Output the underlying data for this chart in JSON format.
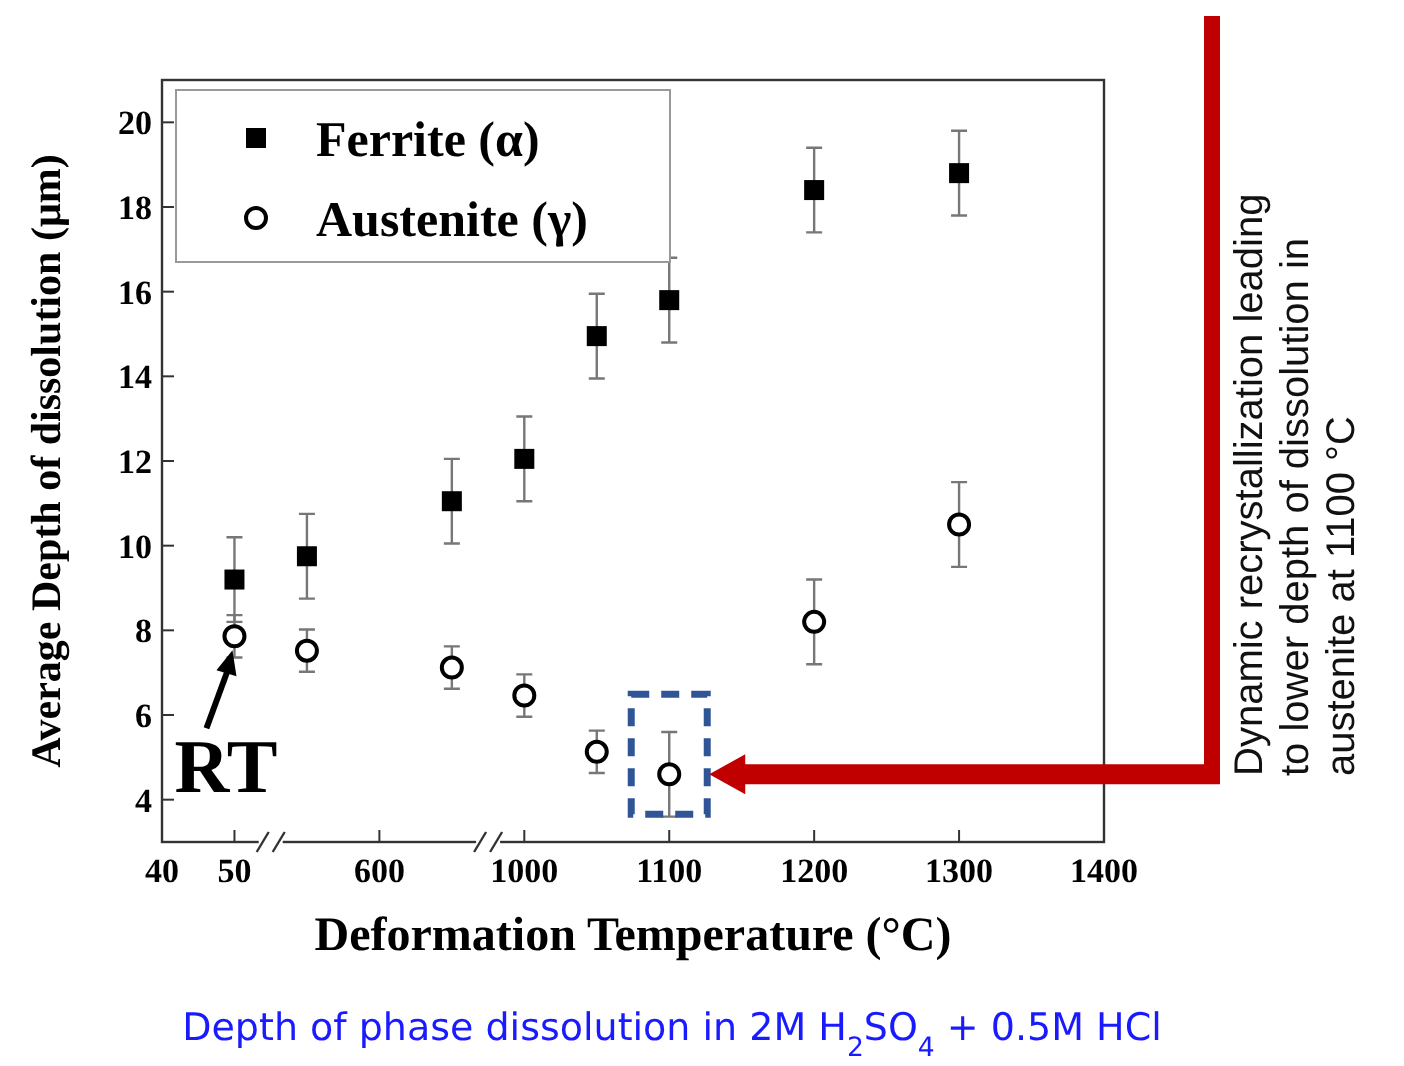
{
  "chart_data": {
    "type": "scatter",
    "xlabel": "Deformation Temperature (°C)",
    "ylabel": "Average Depth of dissolution (μm)",
    "categories": [
      "40",
      "50",
      null,
      "600",
      null,
      "1000",
      null,
      "1100",
      null,
      "1200",
      null,
      "1300",
      null,
      "1400"
    ],
    "ylim": [
      3,
      21
    ],
    "yticks": [
      4,
      6,
      8,
      10,
      12,
      14,
      16,
      18,
      20
    ],
    "grid": false,
    "legend": "top left",
    "series": [
      {
        "name": "Ferrite (α)",
        "color": "#000000",
        "marker": "square",
        "values": [
          null,
          9.2,
          9.75,
          null,
          11.05,
          12.05,
          14.95,
          15.8,
          null,
          18.4,
          null,
          18.8,
          null,
          null
        ],
        "errors": [
          null,
          1,
          1,
          null,
          1,
          1,
          1,
          1,
          null,
          1,
          null,
          1,
          null,
          null
        ]
      },
      {
        "name": "Austenite (γ)",
        "color": "#000000",
        "marker": "circle",
        "values": [
          null,
          7.86,
          7.52,
          null,
          7.12,
          6.46,
          5.13,
          4.6,
          null,
          8.2,
          null,
          10.5,
          null,
          null
        ],
        "errors": [
          null,
          0.5,
          0.5,
          null,
          0.5,
          0.5,
          0.5,
          1,
          null,
          1,
          null,
          1,
          null,
          null
        ]
      }
    ],
    "annotations": [
      {
        "text": "RT",
        "x": "50",
        "y": 7.86
      },
      "Dynamic recrystallization leading to lower depth of dissolution in austenite at 1100 °C",
      "Depth of phase dissolution in 2M H$_{2}$SO$_{4}$ + 0.5M HCl"
    ]
  }
}
